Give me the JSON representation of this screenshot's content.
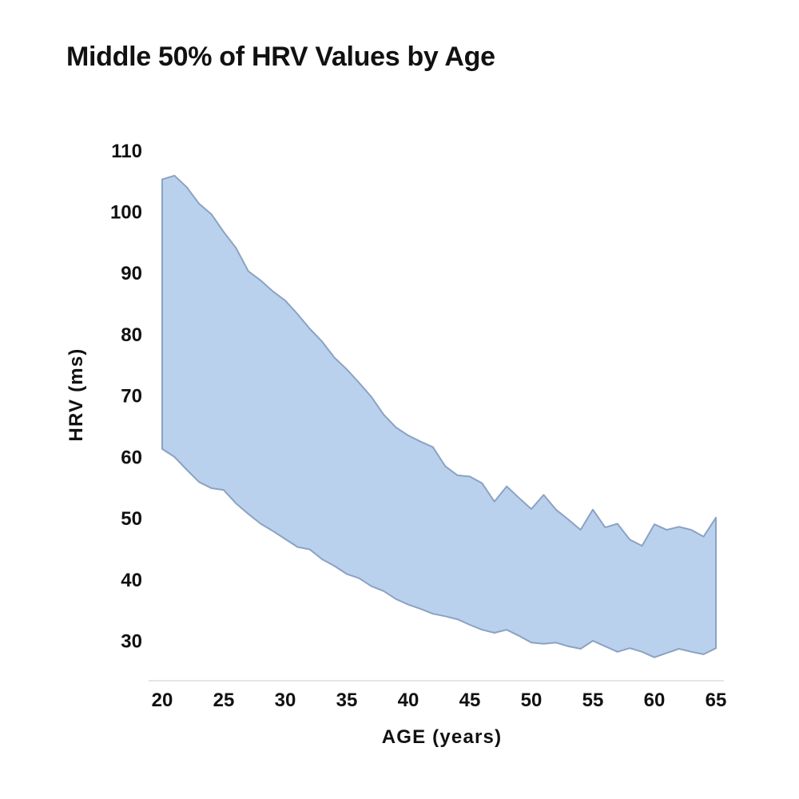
{
  "title": "Middle 50% of HRV Values by Age",
  "colors": {
    "background": "#ffffff",
    "band_fill": "#b9d1ec",
    "band_stroke": "#8ba2c3",
    "text": "#111111",
    "axis_line": "#e5e5e5"
  },
  "chart_data": {
    "type": "area",
    "title": "Middle 50% of HRV Values by Age",
    "xlabel": "AGE (years)",
    "ylabel": "HRV (ms)",
    "legend": "none",
    "grid": false,
    "xlim": [
      20,
      65
    ],
    "ylim": [
      23.5,
      113
    ],
    "x_ticks": [
      20,
      25,
      30,
      35,
      40,
      45,
      50,
      55,
      60,
      65
    ],
    "y_ticks": [
      110,
      100,
      90,
      80,
      70,
      60,
      50,
      40,
      30
    ],
    "x": [
      20,
      21,
      22,
      23,
      24,
      25,
      26,
      27,
      28,
      29,
      30,
      31,
      32,
      33,
      34,
      35,
      36,
      37,
      38,
      39,
      40,
      41,
      42,
      43,
      44,
      45,
      46,
      47,
      48,
      49,
      50,
      51,
      52,
      53,
      54,
      55,
      56,
      57,
      58,
      59,
      60,
      61,
      62,
      63,
      64,
      65
    ],
    "series": [
      {
        "name": "upper_bound_75th_percentile",
        "values": [
          105.3,
          105.9,
          104.0,
          101.3,
          99.6,
          96.7,
          94.1,
          90.3,
          88.8,
          87.0,
          85.5,
          83.3,
          80.9,
          78.8,
          76.2,
          74.3,
          72.1,
          69.8,
          66.9,
          64.8,
          63.5,
          62.5,
          61.6,
          58.5,
          57.0,
          56.8,
          55.7,
          52.7,
          55.2,
          53.3,
          51.5,
          53.8,
          51.4,
          49.8,
          48.1,
          51.4,
          48.5,
          49.1,
          46.5,
          45.5,
          49.0,
          48.1,
          48.6,
          48.1,
          47.0,
          50.1
        ]
      },
      {
        "name": "lower_bound_25th_percentile",
        "values": [
          61.3,
          60.0,
          57.9,
          55.9,
          54.9,
          54.6,
          52.4,
          50.7,
          49.1,
          47.9,
          46.6,
          45.3,
          44.9,
          43.3,
          42.2,
          40.9,
          40.2,
          38.9,
          38.1,
          36.8,
          35.9,
          35.2,
          34.4,
          34.0,
          33.5,
          32.6,
          31.8,
          31.3,
          31.8,
          30.8,
          29.7,
          29.5,
          29.7,
          29.1,
          28.7,
          30.0,
          29.1,
          28.2,
          28.8,
          28.2,
          27.3,
          28.0,
          28.7,
          28.2,
          27.8,
          28.8
        ]
      }
    ]
  }
}
